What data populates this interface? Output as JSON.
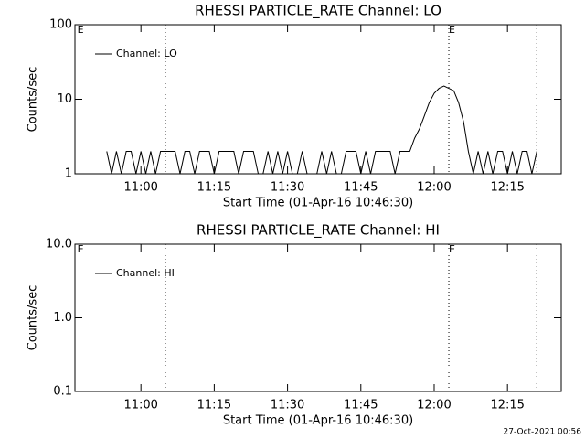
{
  "chart_data": [
    {
      "type": "line",
      "title": "RHESSI PARTICLE_RATE Channel: LO",
      "xlabel": "Start Time (01-Apr-16 10:46:30)",
      "ylabel": "Counts/sec",
      "log_y": true,
      "ylim": [
        1,
        100
      ],
      "yticks": [
        1,
        10,
        100
      ],
      "xlim": [
        "10:46:30",
        "12:26:00"
      ],
      "xticks": [
        "11:00",
        "11:15",
        "11:30",
        "11:45",
        "12:00",
        "12:15"
      ],
      "vlines": [
        "11:05",
        "12:03",
        "12:21"
      ],
      "annotations": [
        {
          "text": "E",
          "x": "10:47"
        },
        {
          "text": "E",
          "x": "12:03"
        }
      ],
      "legend": "upper left",
      "x": [
        "10:53",
        "10:54",
        "10:55",
        "10:56",
        "10:57",
        "10:58",
        "10:59",
        "11:00",
        "11:01",
        "11:02",
        "11:03",
        "11:04",
        "11:05",
        "11:06",
        "11:07",
        "11:08",
        "11:09",
        "11:10",
        "11:11",
        "11:12",
        "11:13",
        "11:14",
        "11:15",
        "11:16",
        "11:17",
        "11:18",
        "11:19",
        "11:20",
        "11:21",
        "11:22",
        "11:23",
        "11:24",
        "11:25",
        "11:26",
        "11:27",
        "11:28",
        "11:29",
        "11:30",
        "11:31",
        "11:32",
        "11:33",
        "11:34",
        "11:35",
        "11:36",
        "11:37",
        "11:38",
        "11:39",
        "11:40",
        "11:41",
        "11:42",
        "11:43",
        "11:44",
        "11:45",
        "11:46",
        "11:47",
        "11:48",
        "11:49",
        "11:50",
        "11:51",
        "11:52",
        "11:53",
        "11:54",
        "11:55",
        "11:56",
        "11:57",
        "11:58",
        "11:59",
        "12:00",
        "12:01",
        "12:02",
        "12:03",
        "12:04",
        "12:05",
        "12:06",
        "12:07",
        "12:08",
        "12:09",
        "12:10",
        "12:11",
        "12:12",
        "12:13",
        "12:14",
        "12:15",
        "12:16",
        "12:17",
        "12:18",
        "12:19",
        "12:20",
        "12:21"
      ],
      "series": [
        {
          "name": "Channel: LO",
          "color": "#000000",
          "values": [
            2,
            1,
            2,
            1,
            2,
            2,
            1,
            2,
            1,
            2,
            1,
            2,
            2,
            2,
            2,
            1,
            2,
            2,
            1,
            2,
            2,
            2,
            1,
            2,
            2,
            2,
            2,
            1,
            2,
            2,
            2,
            1,
            1,
            2,
            1,
            2,
            1,
            2,
            1,
            1,
            2,
            1,
            1,
            1,
            2,
            1,
            2,
            1,
            1,
            2,
            2,
            2,
            1,
            2,
            1,
            2,
            2,
            2,
            2,
            1,
            2,
            2,
            2,
            3,
            4,
            6,
            9,
            12,
            14,
            15,
            14,
            13,
            9,
            5,
            2,
            1,
            2,
            1,
            2,
            1,
            2,
            2,
            1,
            2,
            1,
            2,
            2,
            1,
            2
          ]
        }
      ]
    },
    {
      "type": "line",
      "title": "RHESSI PARTICLE_RATE Channel: HI",
      "xlabel": "Start Time (01-Apr-16 10:46:30)",
      "ylabel": "Counts/sec",
      "log_y": true,
      "ylim": [
        0.1,
        10
      ],
      "yticks": [
        0.1,
        {
          "value": 1,
          "label": "1.0"
        },
        {
          "value": 10,
          "label": "10.0"
        }
      ],
      "xlim": [
        "10:46:30",
        "12:26:00"
      ],
      "xticks": [
        "11:00",
        "11:15",
        "11:30",
        "11:45",
        "12:00",
        "12:15"
      ],
      "vlines": [
        "11:05",
        "12:03",
        "12:21"
      ],
      "annotations": [
        {
          "text": "E",
          "x": "10:47"
        },
        {
          "text": "E",
          "x": "12:03"
        }
      ],
      "legend": "upper left",
      "x": [],
      "series": [
        {
          "name": "Channel: HI",
          "color": "#000000",
          "values": []
        }
      ]
    }
  ],
  "footer": "27-Oct-2021 00:56"
}
